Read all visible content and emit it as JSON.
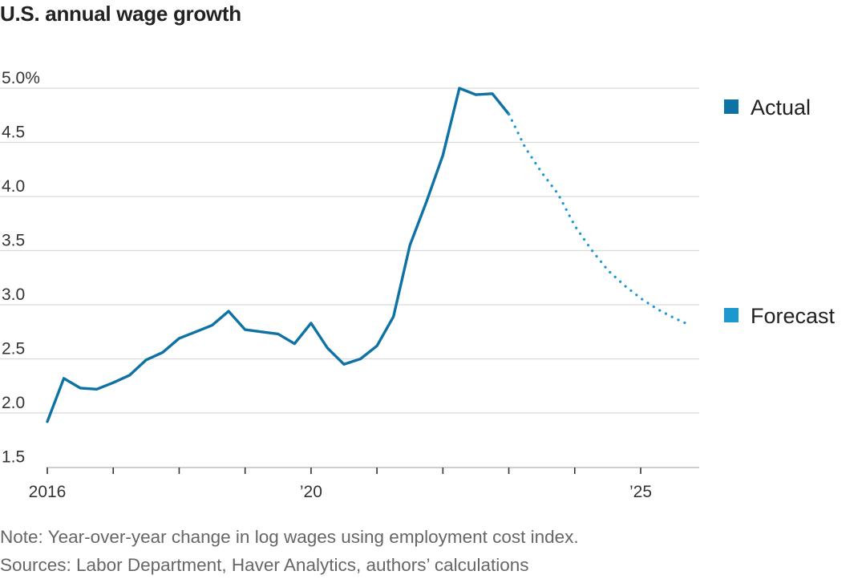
{
  "chart_data": {
    "type": "line",
    "title": "U.S. annual wage growth",
    "y_tick_labels": [
      "5.0%",
      "4.5",
      "4.0",
      "3.5",
      "3.0",
      "2.5",
      "2.0",
      "1.5"
    ],
    "y_ticks": [
      5.0,
      4.5,
      4.0,
      3.5,
      3.0,
      2.5,
      2.0,
      1.5
    ],
    "ylim": [
      1.5,
      5.0
    ],
    "x_tick_labels": [
      {
        "x": 2016,
        "label": "2016"
      },
      {
        "x": 2020,
        "label": "’20"
      },
      {
        "x": 2025,
        "label": "’25"
      }
    ],
    "x_minor_ticks": [
      2016,
      2017,
      2018,
      2019,
      2020,
      2021,
      2022,
      2023,
      2024,
      2025
    ],
    "xlim": [
      2016,
      2025.8
    ],
    "grid": true,
    "legend_placement": "right",
    "series": [
      {
        "name": "Actual",
        "color": "#0e72a5",
        "style": "solid",
        "points": [
          [
            2016.0,
            1.92
          ],
          [
            2016.25,
            2.32
          ],
          [
            2016.5,
            2.23
          ],
          [
            2016.75,
            2.22
          ],
          [
            2017.0,
            2.28
          ],
          [
            2017.25,
            2.35
          ],
          [
            2017.5,
            2.49
          ],
          [
            2017.75,
            2.56
          ],
          [
            2018.0,
            2.69
          ],
          [
            2018.25,
            2.75
          ],
          [
            2018.5,
            2.81
          ],
          [
            2018.75,
            2.94
          ],
          [
            2019.0,
            2.77
          ],
          [
            2019.25,
            2.75
          ],
          [
            2019.5,
            2.73
          ],
          [
            2019.75,
            2.64
          ],
          [
            2020.0,
            2.83
          ],
          [
            2020.25,
            2.6
          ],
          [
            2020.5,
            2.45
          ],
          [
            2020.75,
            2.5
          ],
          [
            2021.0,
            2.62
          ],
          [
            2021.25,
            2.89
          ],
          [
            2021.5,
            3.55
          ],
          [
            2021.75,
            3.95
          ],
          [
            2022.0,
            4.38
          ],
          [
            2022.25,
            5.0
          ],
          [
            2022.5,
            4.94
          ],
          [
            2022.75,
            4.95
          ],
          [
            2023.0,
            4.76
          ]
        ]
      },
      {
        "name": "Forecast",
        "color": "#1a98cf",
        "style": "dotted",
        "points": [
          [
            2023.0,
            4.76
          ],
          [
            2023.25,
            4.45
          ],
          [
            2023.5,
            4.22
          ],
          [
            2023.75,
            4.02
          ],
          [
            2024.0,
            3.73
          ],
          [
            2024.25,
            3.51
          ],
          [
            2024.5,
            3.32
          ],
          [
            2024.75,
            3.18
          ],
          [
            2025.0,
            3.06
          ],
          [
            2025.25,
            2.96
          ],
          [
            2025.5,
            2.88
          ],
          [
            2025.75,
            2.81
          ]
        ]
      }
    ]
  },
  "notes": {
    "note": "Note: Year-over-year change in log wages using employment cost index.",
    "sources": "Sources: Labor Department, Haver Analytics, authors’ calculations"
  }
}
